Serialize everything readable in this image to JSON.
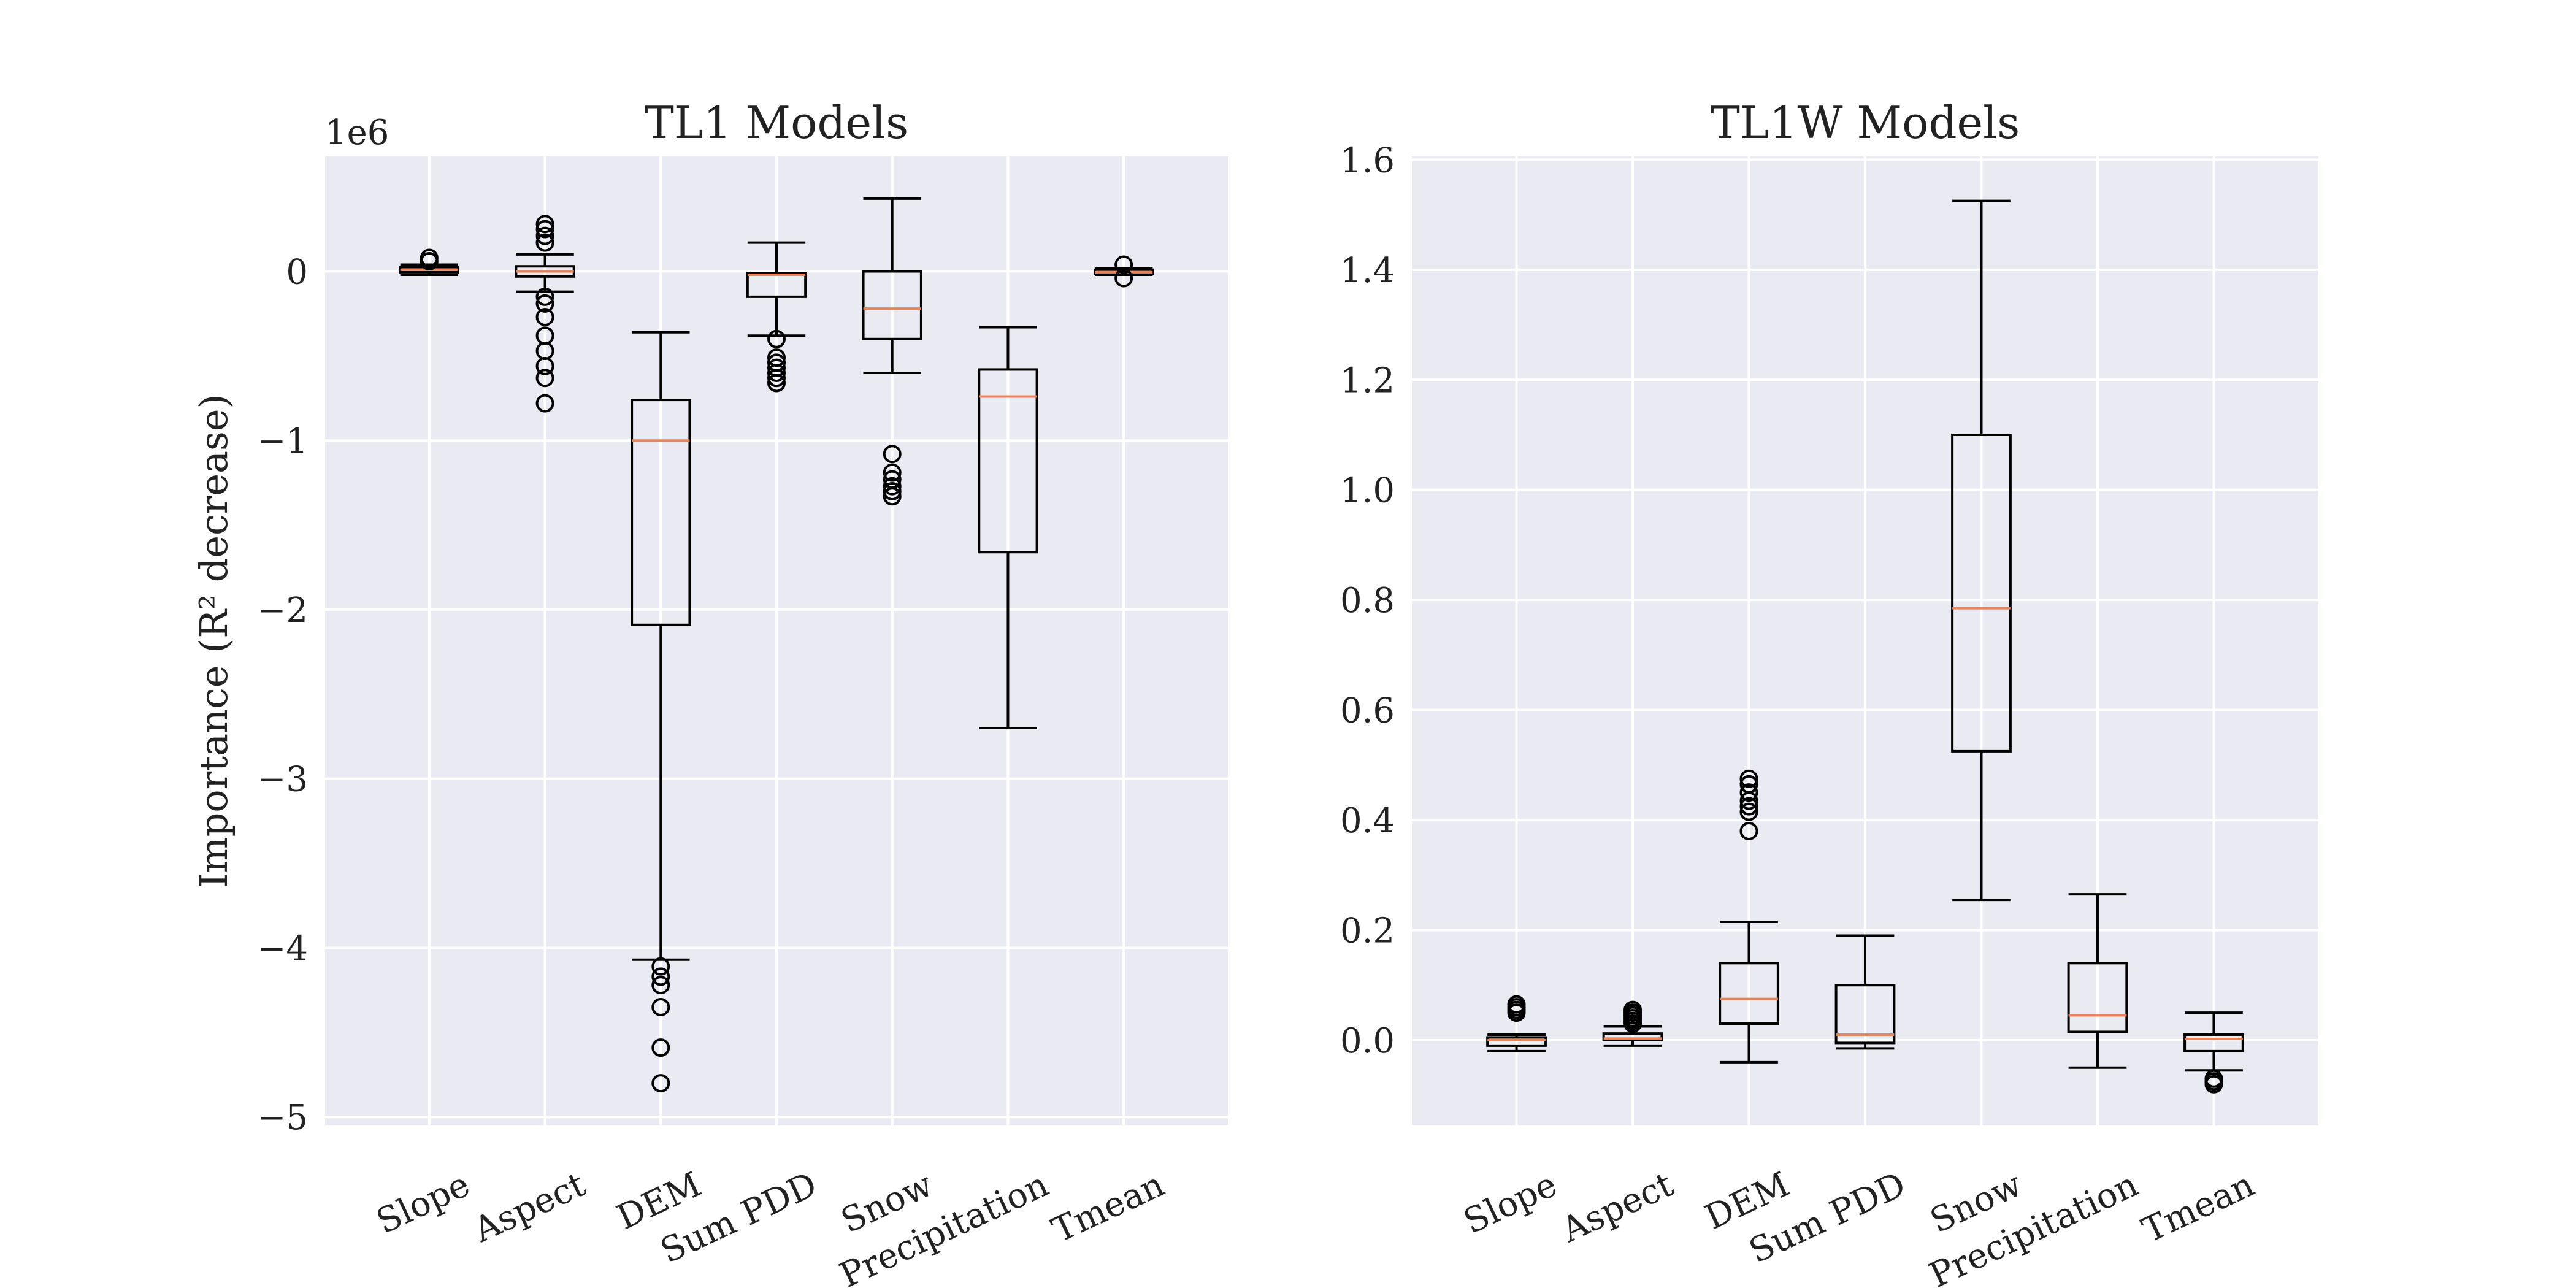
{
  "chart_data": [
    {
      "type": "box",
      "title": "TL1 Models",
      "ylabel": "Importance (R² decrease)",
      "offset_label": "1e6",
      "categories": [
        "Slope",
        "Aspect",
        "DEM",
        "Sum PDD",
        "Snow",
        "Precipitation",
        "Tmean"
      ],
      "ylim": [
        -5.05,
        0.68
      ],
      "yticks": [
        -5,
        -4,
        -3,
        -2,
        -1,
        0
      ],
      "ytick_labels": [
        "−5",
        "−4",
        "−3",
        "−2",
        "−1",
        "0"
      ],
      "grid": true,
      "boxes": [
        {
          "category": "Slope",
          "whisker_low": -0.02,
          "q1": -0.005,
          "median": 0.01,
          "q3": 0.025,
          "whisker_high": 0.04,
          "fliers": [
            0.06,
            0.08
          ]
        },
        {
          "category": "Aspect",
          "whisker_low": -0.12,
          "q1": -0.03,
          "median": 0.0,
          "q3": 0.03,
          "whisker_high": 0.1,
          "fliers": [
            -0.78,
            -0.63,
            -0.56,
            -0.47,
            -0.38,
            -0.27,
            -0.19,
            -0.15,
            0.17,
            0.21,
            0.25,
            0.28
          ]
        },
        {
          "category": "DEM",
          "whisker_low": -4.07,
          "q1": -2.09,
          "median": -1.0,
          "q3": -0.76,
          "whisker_high": -0.36,
          "fliers": [
            -4.8,
            -4.59,
            -4.35,
            -4.22,
            -4.17,
            -4.11
          ]
        },
        {
          "category": "Sum PDD",
          "whisker_low": -0.38,
          "q1": -0.15,
          "median": -0.02,
          "q3": -0.01,
          "whisker_high": 0.17,
          "fliers": [
            -0.66,
            -0.63,
            -0.6,
            -0.57,
            -0.54,
            -0.51,
            -0.4
          ]
        },
        {
          "category": "Snow",
          "whisker_low": -0.6,
          "q1": -0.4,
          "median": -0.22,
          "q3": 0.0,
          "whisker_high": 0.43,
          "fliers": [
            -1.33,
            -1.3,
            -1.27,
            -1.23,
            -1.19,
            -1.08
          ]
        },
        {
          "category": "Precipitation",
          "whisker_low": -2.7,
          "q1": -1.66,
          "median": -0.74,
          "q3": -0.58,
          "whisker_high": -0.33,
          "fliers": []
        },
        {
          "category": "Tmean",
          "whisker_low": -0.02,
          "q1": -0.015,
          "median": -0.005,
          "q3": 0.01,
          "whisker_high": 0.02,
          "fliers": [
            -0.04,
            0.04
          ]
        }
      ]
    },
    {
      "type": "box",
      "title": "TL1W Models",
      "ylabel": "",
      "categories": [
        "Slope",
        "Aspect",
        "DEM",
        "Sum PDD",
        "Snow",
        "Precipitation",
        "Tmean"
      ],
      "ylim": [
        -0.155,
        1.606
      ],
      "yticks": [
        0.0,
        0.2,
        0.4,
        0.6,
        0.8,
        1.0,
        1.2,
        1.4,
        1.6
      ],
      "ytick_labels": [
        "0.0",
        "0.2",
        "0.4",
        "0.6",
        "0.8",
        "1.0",
        "1.2",
        "1.4",
        "1.6"
      ],
      "grid": true,
      "boxes": [
        {
          "category": "Slope",
          "whisker_low": -0.02,
          "q1": -0.01,
          "median": 0.0,
          "q3": 0.005,
          "whisker_high": 0.01,
          "fliers": [
            0.05,
            0.055,
            0.06,
            0.065
          ]
        },
        {
          "category": "Aspect",
          "whisker_low": -0.01,
          "q1": 0.0,
          "median": 0.003,
          "q3": 0.012,
          "whisker_high": 0.025,
          "fliers": [
            0.03,
            0.035,
            0.04,
            0.045,
            0.05,
            0.055
          ]
        },
        {
          "category": "DEM",
          "whisker_low": -0.04,
          "q1": 0.03,
          "median": 0.075,
          "q3": 0.14,
          "whisker_high": 0.215,
          "fliers": [
            0.38,
            0.415,
            0.425,
            0.435,
            0.45,
            0.465,
            0.475
          ]
        },
        {
          "category": "Sum PDD",
          "whisker_low": -0.015,
          "q1": -0.005,
          "median": 0.01,
          "q3": 0.1,
          "whisker_high": 0.19,
          "fliers": []
        },
        {
          "category": "Snow",
          "whisker_low": 0.255,
          "q1": 0.525,
          "median": 0.785,
          "q3": 1.1,
          "whisker_high": 1.525,
          "fliers": []
        },
        {
          "category": "Precipitation",
          "whisker_low": -0.05,
          "q1": 0.015,
          "median": 0.045,
          "q3": 0.14,
          "whisker_high": 0.265,
          "fliers": []
        },
        {
          "category": "Tmean",
          "whisker_low": -0.055,
          "q1": -0.02,
          "median": 0.002,
          "q3": 0.01,
          "whisker_high": 0.05,
          "fliers": [
            -0.08,
            -0.075,
            -0.07
          ]
        }
      ]
    }
  ]
}
